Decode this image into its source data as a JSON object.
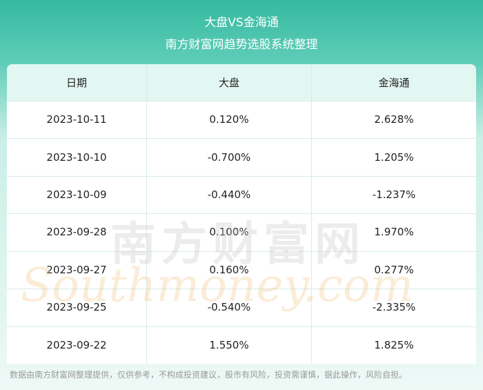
{
  "header": {
    "title": "大盘VS金海通",
    "subtitle": "南方财富网趋势选股系统整理"
  },
  "table": {
    "columns": [
      "日期",
      "大盘",
      "金海通"
    ],
    "rows": [
      [
        "2023-10-11",
        "0.120%",
        "2.628%"
      ],
      [
        "2023-10-10",
        "-0.700%",
        "1.205%"
      ],
      [
        "2023-10-09",
        "-0.440%",
        "-1.237%"
      ],
      [
        "2023-09-28",
        "0.100%",
        "1.970%"
      ],
      [
        "2023-09-27",
        "0.160%",
        "0.277%"
      ],
      [
        "2023-09-25",
        "-0.540%",
        "-2.335%"
      ],
      [
        "2023-09-22",
        "1.550%",
        "1.825%"
      ]
    ]
  },
  "watermark": {
    "cn": "南方财富网",
    "en": "Southmoney.com"
  },
  "footer": {
    "disclaimer": "数据由南方财富网整理提供，仅供参考，不构成投资建议，股市有风险，投资需谨慎，据此操作，风险自担。"
  }
}
